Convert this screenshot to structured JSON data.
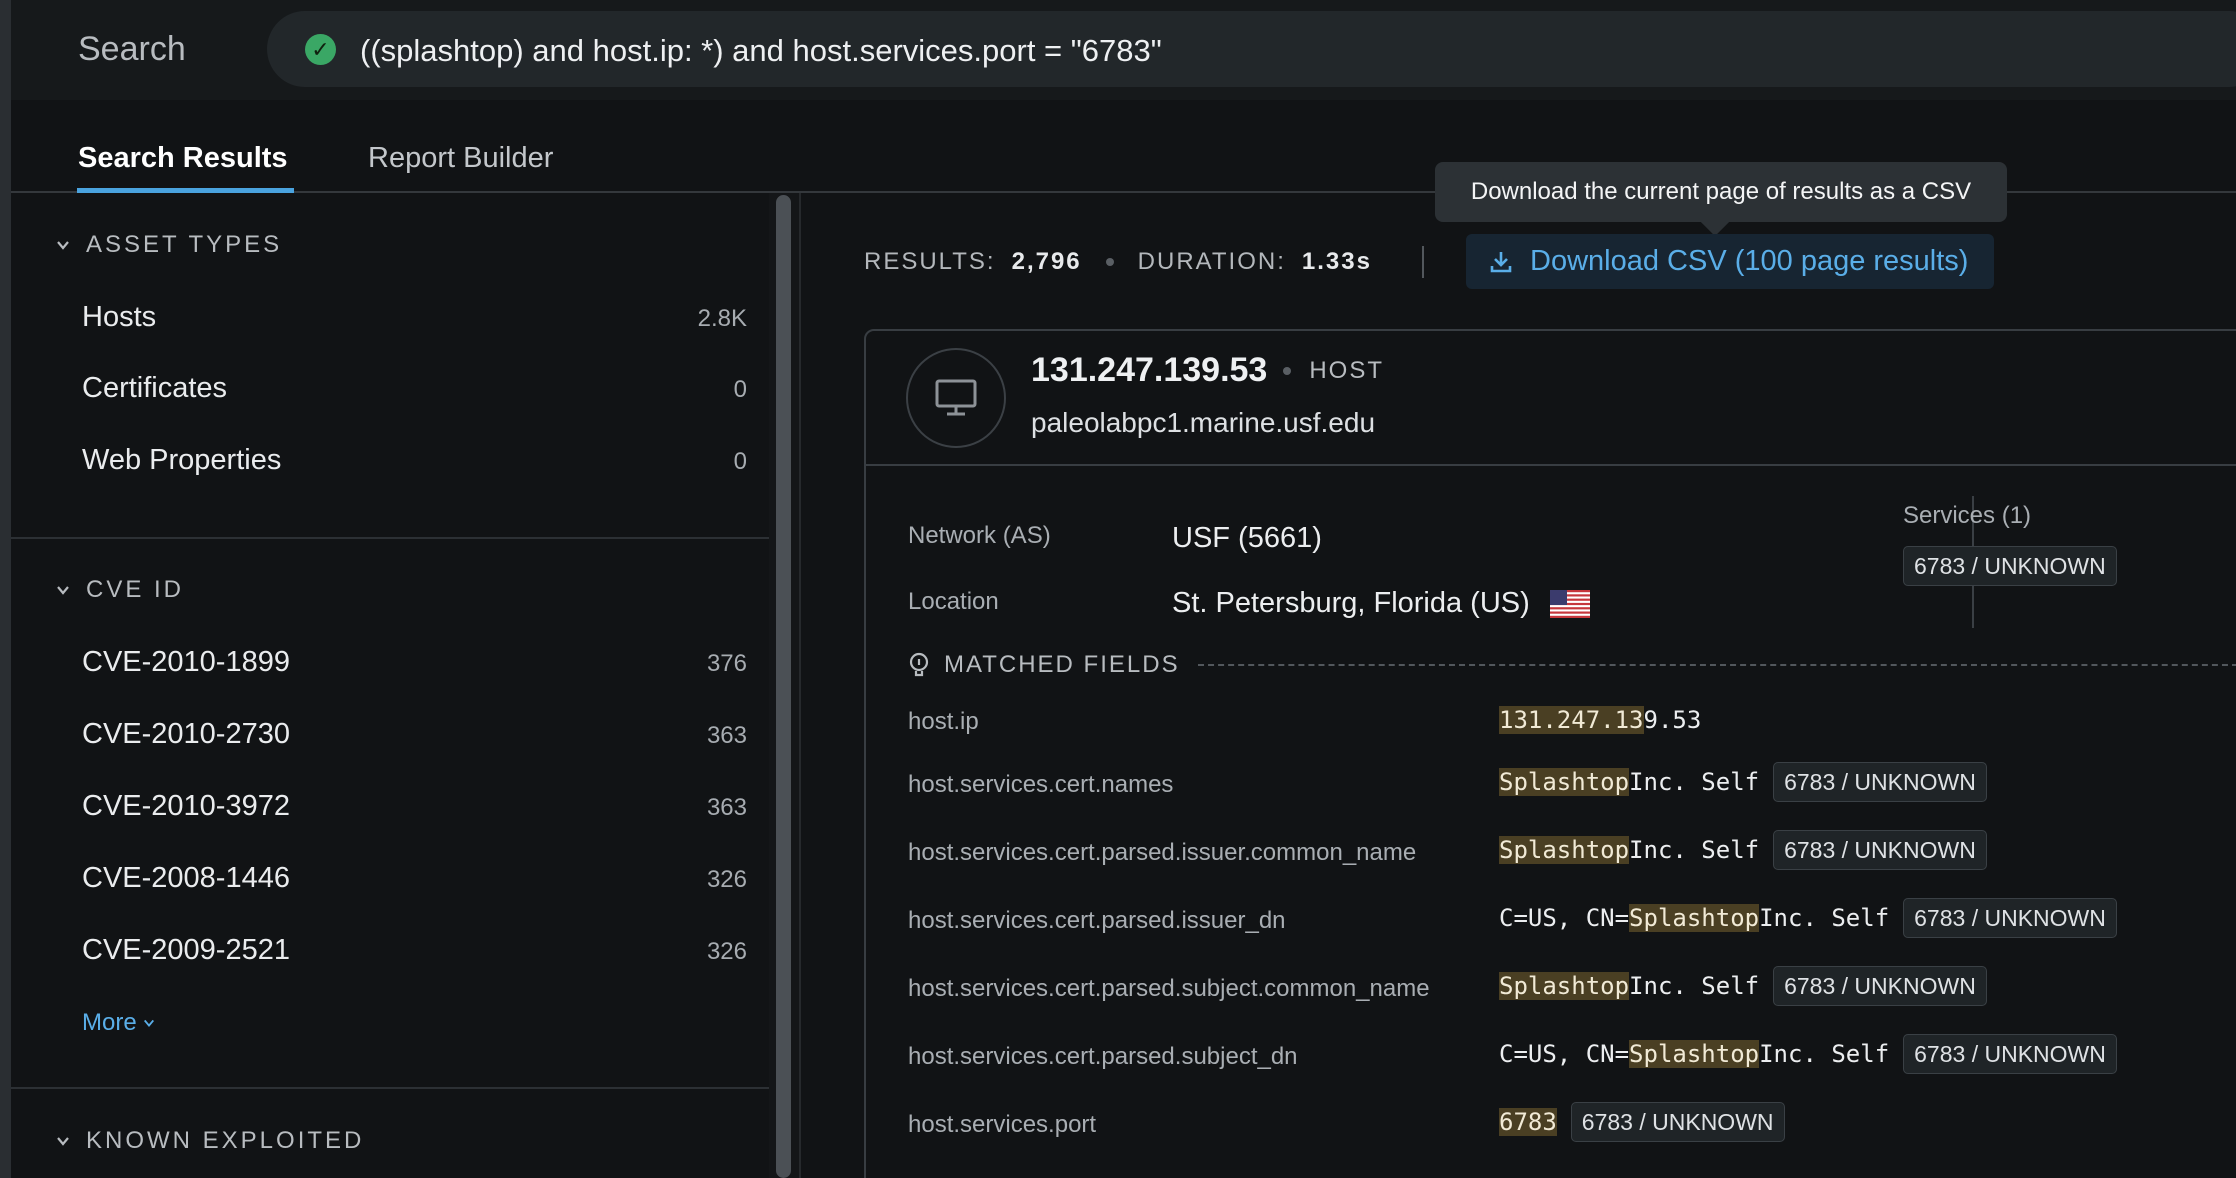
{
  "search": {
    "label": "Search",
    "query": "((splashtop) and host.ip: *) and host.services.port = \"6783\""
  },
  "tabs": [
    {
      "label": "Search Results",
      "active": true
    },
    {
      "label": "Report Builder",
      "active": false
    }
  ],
  "sidebar": {
    "asset_types": {
      "header": "ASSET TYPES",
      "items": [
        {
          "label": "Hosts",
          "count": "2.8K"
        },
        {
          "label": "Certificates",
          "count": "0"
        },
        {
          "label": "Web Properties",
          "count": "0"
        }
      ]
    },
    "cve_id": {
      "header": "CVE ID",
      "items": [
        {
          "label": "CVE-2010-1899",
          "count": "376"
        },
        {
          "label": "CVE-2010-2730",
          "count": "363"
        },
        {
          "label": "CVE-2010-3972",
          "count": "363"
        },
        {
          "label": "CVE-2008-1446",
          "count": "326"
        },
        {
          "label": "CVE-2009-2521",
          "count": "326"
        }
      ],
      "more_label": "More"
    },
    "known_exploited": {
      "header": "KNOWN EXPLOITED"
    }
  },
  "stats": {
    "results_label": "RESULTS:",
    "results_value": "2,796",
    "duration_label": "DURATION:",
    "duration_value": "1.33s"
  },
  "csv": {
    "tooltip": "Download the current page of results as a CSV",
    "button_label": "Download CSV (100 page results)"
  },
  "host": {
    "ip": "131.247.139.53",
    "type": "HOST",
    "hostname": "paleolabpc1.marine.usf.edu",
    "network_label": "Network (AS)",
    "network_value": "USF (5661)",
    "location_label": "Location",
    "location_value": "St. Petersburg, Florida (US)",
    "services_label": "Services (1)",
    "services_tag": "6783 / UNKNOWN"
  },
  "matched": {
    "header": "MATCHED FIELDS",
    "rows": [
      {
        "key": "host.ip",
        "pre": "",
        "hl": "131.247.13",
        "post": "9.53",
        "tag": ""
      },
      {
        "key": "host.services.cert.names",
        "pre": "",
        "hl": "Splashtop",
        "post": " Inc. Self",
        "tag": "6783 / UNKNOWN"
      },
      {
        "key": "host.services.cert.parsed.issuer.common_name",
        "pre": "",
        "hl": "Splashtop",
        "post": " Inc. Self",
        "tag": "6783 / UNKNOWN"
      },
      {
        "key": "host.services.cert.parsed.issuer_dn",
        "pre": "C=US, CN=",
        "hl": "Splashtop",
        "post": " Inc. Self",
        "tag": "6783 / UNKNOWN"
      },
      {
        "key": "host.services.cert.parsed.subject.common_name",
        "pre": "",
        "hl": "Splashtop",
        "post": " Inc. Self",
        "tag": "6783 / UNKNOWN"
      },
      {
        "key": "host.services.cert.parsed.subject_dn",
        "pre": "C=US, CN=",
        "hl": "Splashtop",
        "post": " Inc. Self",
        "tag": "6783 / UNKNOWN"
      },
      {
        "key": "host.services.port",
        "pre": "",
        "hl": "6783",
        "post": "",
        "tag": "6783 / UNKNOWN"
      }
    ]
  },
  "colors": {
    "accent": "#4aa3df",
    "success": "#3aa765",
    "highlight": "#4a3f23"
  }
}
